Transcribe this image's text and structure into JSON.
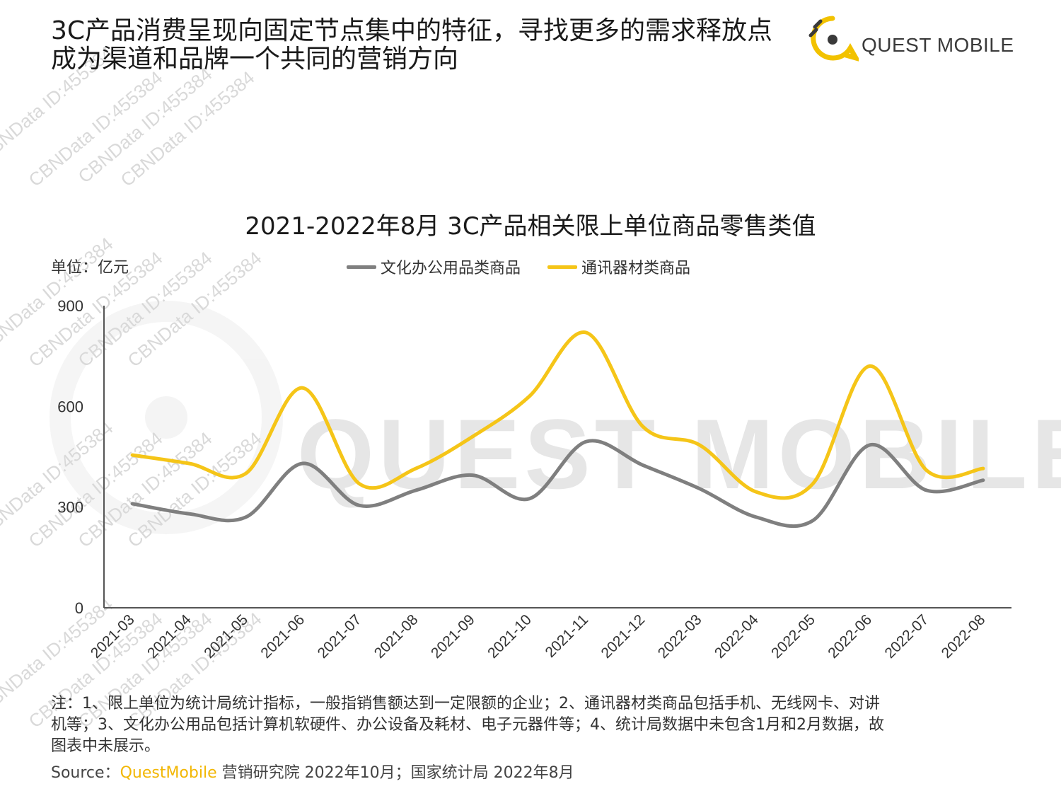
{
  "header": {
    "title_line1": "3C产品消费呈现向固定节点集中的特征，寻找更多的需求释放点",
    "title_line2": "成为渠道和品牌一个共同的营销方向"
  },
  "logo": {
    "text": "QUEST MOBILE"
  },
  "watermark": {
    "text": "CBNData ID:455384",
    "brand_text": "QUEST MOBILE"
  },
  "unit_label": "单位：亿元",
  "colors": {
    "office": "#7f7f7f",
    "telecom": "#f5c518",
    "brand": "#f2b705"
  },
  "chart_data": {
    "type": "line",
    "title": "2021-2022年8月 3C产品相关限上单位商品零售类值",
    "xlabel": "",
    "ylabel": "单位：亿元",
    "ylim": [
      0,
      900
    ],
    "yticks": [
      "900",
      "600",
      "300",
      "0"
    ],
    "ytick_values": [
      900,
      600,
      300,
      0
    ],
    "grid": false,
    "legend_position": "top-center",
    "categories": [
      "2021-03",
      "2021-04",
      "2021-05",
      "2021-06",
      "2021-07",
      "2021-08",
      "2021-09",
      "2021-10",
      "2021-11",
      "2021-12",
      "2022-03",
      "2022-04",
      "2022-05",
      "2022-06",
      "2022-07",
      "2022-08"
    ],
    "series": [
      {
        "name": "文化办公用品类商品",
        "color": "#7f7f7f",
        "values": [
          310,
          280,
          270,
          430,
          305,
          350,
          395,
          325,
          495,
          425,
          355,
          270,
          260,
          485,
          350,
          380
        ]
      },
      {
        "name": "通讯器材类商品",
        "color": "#f5c518",
        "values": [
          455,
          430,
          400,
          655,
          370,
          415,
          510,
          630,
          820,
          540,
          485,
          345,
          370,
          720,
          410,
          415
        ]
      }
    ]
  },
  "footnote": {
    "line1": "注：1、限上单位为统计局统计指标，一般指销售额达到一定限额的企业；2、通讯器材类商品包括手机、无线网卡、对讲",
    "line2": "机等；3、文化办公用品包括计算机软硬件、办公设备及耗材、电子元器件等；4、统计局数据中未包含1月和2月数据，故",
    "line3": "图表中未展示。"
  },
  "source": {
    "prefix": "Source：",
    "brand": "QuestMobile",
    "rest": " 营销研究院 2022年10月；国家统计局 2022年8月"
  }
}
